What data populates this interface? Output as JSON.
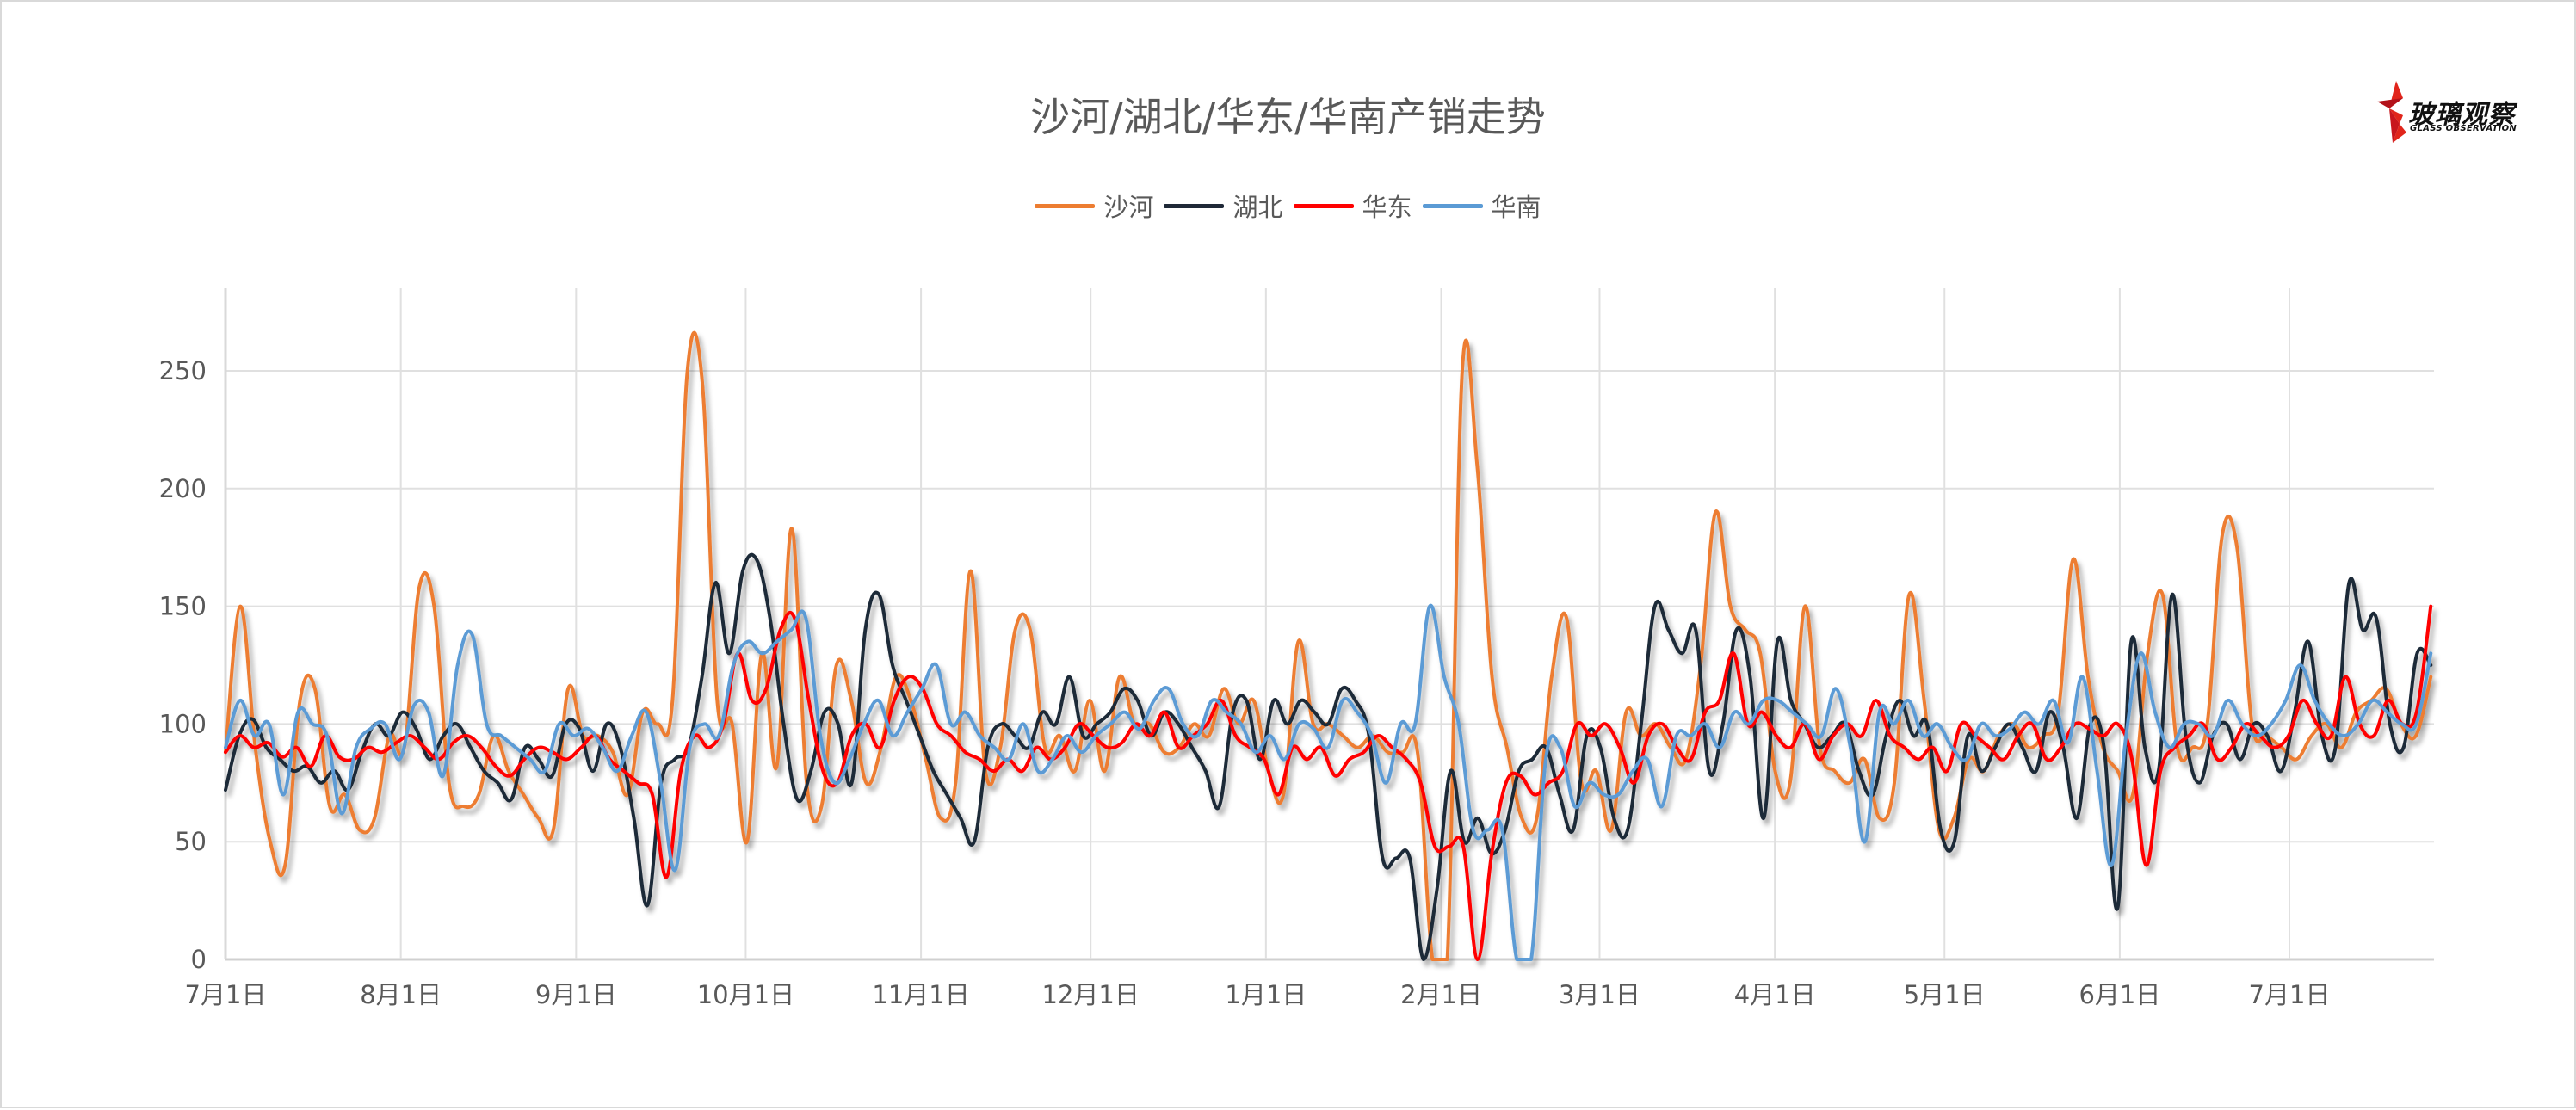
{
  "header": {
    "title": "沙河/湖北/华东/华南产销走势",
    "logo": {
      "cn": "玻璃观察",
      "en": "GLASS OBSERVATION"
    }
  },
  "legend": [
    {
      "label": "沙河",
      "color": "#ED7D31"
    },
    {
      "label": "湖北",
      "color": "#1F2937"
    },
    {
      "label": "华东",
      "color": "#FF0000"
    },
    {
      "label": "华南",
      "color": "#5B9BD5"
    }
  ],
  "chart_data": {
    "type": "line",
    "title": "沙河/湖北/华东/华南产销走势",
    "xlabel": "",
    "ylabel": "",
    "ylim": [
      0,
      280
    ],
    "yticks": [
      0,
      50,
      100,
      150,
      200,
      250
    ],
    "grid": true,
    "legend_position": "top",
    "x_tick_labels": [
      "7月1日",
      "8月1日",
      "9月1日",
      "10月1日",
      "11月1日",
      "12月1日",
      "1月1日",
      "2月1日",
      "3月1日",
      "4月1日",
      "5月1日",
      "6月1日",
      "7月1日"
    ],
    "x_tick_days": [
      0,
      31,
      62,
      92,
      123,
      153,
      184,
      215,
      243,
      274,
      304,
      335,
      365
    ],
    "x_day_step": 4,
    "x_start_day": 0,
    "series": [
      {
        "name": "沙河",
        "color": "#ED7D31",
        "values": [
          88,
          150,
          90,
          50,
          40,
          110,
          115,
          65,
          70,
          55,
          60,
          95,
          90,
          158,
          150,
          75,
          65,
          70,
          95,
          80,
          70,
          60,
          55,
          115,
          95,
          95,
          88,
          70,
          105,
          100,
          110,
          250,
          245,
          110,
          100,
          50,
          130,
          82,
          183,
          75,
          65,
          125,
          110,
          75,
          90,
          120,
          110,
          85,
          60,
          75,
          165,
          80,
          90,
          140,
          140,
          90,
          95,
          80,
          110,
          80,
          120,
          100,
          100,
          88,
          90,
          100,
          95,
          115,
          100,
          110,
          80,
          70,
          135,
          100,
          100,
          95,
          90,
          95,
          88,
          88,
          88,
          0,
          0,
          250,
          210,
          120,
          90,
          60,
          60,
          120,
          145,
          75,
          80,
          55,
          105,
          95,
          100,
          90,
          85,
          125,
          190,
          150,
          140,
          130,
          80,
          75,
          150,
          90,
          80,
          75,
          85,
          60,
          75,
          155,
          110,
          55,
          60,
          85,
          80,
          95,
          100,
          90,
          95,
          105,
          170,
          120,
          90,
          80,
          70,
          130,
          155,
          90,
          90,
          100,
          180,
          175,
          100,
          95,
          90,
          85,
          95,
          100,
          90,
          105,
          110,
          115,
          100,
          95,
          120
        ]
      },
      {
        "name": "湖北",
        "color": "#1F2937",
        "values": [
          72,
          95,
          102,
          90,
          85,
          80,
          82,
          75,
          80,
          72,
          88,
          100,
          95,
          105,
          98,
          85,
          95,
          100,
          90,
          80,
          75,
          68,
          90,
          85,
          78,
          100,
          98,
          80,
          100,
          90,
          60,
          23,
          75,
          85,
          90,
          120,
          160,
          130,
          165,
          170,
          145,
          100,
          68,
          80,
          105,
          100,
          75,
          140,
          155,
          125,
          110,
          95,
          80,
          70,
          60,
          50,
          90,
          100,
          95,
          90,
          105,
          100,
          120,
          95,
          100,
          105,
          115,
          110,
          95,
          105,
          100,
          90,
          80,
          65,
          105,
          110,
          85,
          110,
          100,
          110,
          105,
          100,
          115,
          110,
          95,
          43,
          43,
          43,
          0,
          30,
          80,
          50,
          60,
          45,
          55,
          80,
          85,
          90,
          70,
          55,
          95,
          90,
          60,
          55,
          100,
          150,
          140,
          130,
          140,
          80,
          100,
          140,
          120,
          60,
          135,
          110,
          100,
          90,
          95,
          100,
          80,
          70,
          95,
          110,
          95,
          100,
          55,
          50,
          95,
          80,
          90,
          100,
          90,
          80,
          105,
          90,
          60,
          100,
          90,
          22,
          135,
          90,
          80,
          155,
          95,
          75,
          95,
          100,
          85,
          100,
          95,
          80,
          105,
          135,
          95,
          90,
          160,
          140,
          145,
          100,
          90,
          130,
          125
        ]
      },
      {
        "name": "华东",
        "color": "#FF0000",
        "values": [
          88,
          95,
          90,
          92,
          86,
          90,
          82,
          95,
          86,
          85,
          90,
          88,
          92,
          95,
          90,
          85,
          92,
          95,
          90,
          82,
          78,
          85,
          90,
          88,
          85,
          90,
          95,
          85,
          80,
          75,
          70,
          35,
          80,
          95,
          90,
          100,
          130,
          110,
          115,
          140,
          145,
          110,
          80,
          75,
          95,
          100,
          90,
          110,
          120,
          115,
          100,
          95,
          88,
          85,
          80,
          85,
          80,
          90,
          85,
          90,
          100,
          95,
          90,
          92,
          100,
          95,
          105,
          90,
          95,
          100,
          110,
          95,
          90,
          85,
          70,
          90,
          85,
          90,
          78,
          85,
          88,
          95,
          90,
          85,
          75,
          48,
          48,
          48,
          0,
          45,
          75,
          78,
          70,
          75,
          80,
          100,
          95,
          100,
          90,
          75,
          95,
          100,
          90,
          85,
          105,
          110,
          130,
          100,
          105,
          95,
          90,
          100,
          85,
          95,
          100,
          95,
          110,
          95,
          90,
          85,
          90,
          80,
          100,
          95,
          90,
          85,
          95,
          100,
          85,
          90,
          100,
          98,
          95,
          100,
          85,
          40,
          80,
          90,
          95,
          100,
          85,
          90,
          100,
          95,
          90,
          95,
          110,
          100,
          95,
          120,
          100,
          95,
          110,
          100,
          105,
          150
        ]
      },
      {
        "name": "华南",
        "color": "#5B9BD5",
        "values": [
          90,
          110,
          95,
          100,
          70,
          105,
          100,
          95,
          62,
          90,
          98,
          100,
          85,
          108,
          105,
          78,
          125,
          138,
          100,
          95,
          90,
          85,
          80,
          100,
          95,
          98,
          90,
          80,
          95,
          105,
          75,
          38,
          90,
          100,
          95,
          125,
          135,
          130,
          135,
          140,
          145,
          95,
          75,
          85,
          100,
          110,
          95,
          105,
          115,
          125,
          100,
          105,
          95,
          90,
          85,
          100,
          80,
          85,
          95,
          88,
          95,
          100,
          105,
          98,
          110,
          115,
          100,
          95,
          110,
          105,
          100,
          88,
          95,
          85,
          100,
          98,
          90,
          110,
          105,
          95,
          75,
          100,
          100,
          150,
          120,
          100,
          55,
          55,
          55,
          0,
          0,
          85,
          90,
          65,
          75,
          70,
          70,
          80,
          85,
          65,
          95,
          95,
          100,
          90,
          105,
          100,
          110,
          110,
          105,
          100,
          95,
          115,
          90,
          50,
          105,
          100,
          110,
          95,
          100,
          90,
          85,
          100,
          95,
          98,
          105,
          100,
          110,
          92,
          120,
          80,
          40,
          95,
          130,
          105,
          90,
          100,
          100,
          95,
          110,
          100,
          95,
          100,
          110,
          125,
          110,
          100,
          95,
          100,
          110,
          105,
          100,
          100,
          130
        ]
      }
    ]
  }
}
